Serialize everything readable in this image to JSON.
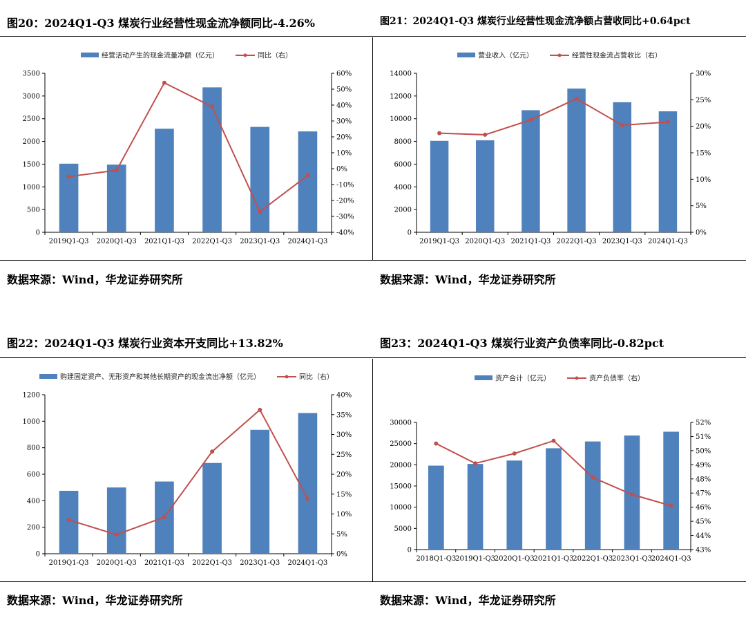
{
  "charts": [
    {
      "title": "图20：2024Q1-Q3 煤炭行业经营性现金流净额同比-4.26%",
      "source": "数据来源：Wind，华龙证券研究所",
      "chart_data": {
        "type": "bar",
        "categories": [
          "2019Q1-Q3",
          "2020Q1-Q3",
          "2021Q1-Q3",
          "2022Q1-Q3",
          "2023Q1-Q3",
          "2024Q1-Q3"
        ],
        "series": [
          {
            "name": "经营活动产生的现金流量净额（亿元）",
            "type": "bar",
            "axis": "left",
            "values": [
              1510,
              1490,
              2280,
              3190,
              2320,
              2220
            ]
          },
          {
            "name": "同比（右）",
            "type": "line",
            "axis": "right",
            "values": [
              -5,
              -1,
              54,
              39,
              -27,
              -4.26
            ]
          }
        ],
        "ylim": [
          0,
          3500
        ],
        "yticks": [
          0,
          500,
          1000,
          1500,
          2000,
          2500,
          3000,
          3500
        ],
        "y2lim": [
          -40,
          60
        ],
        "y2ticks": [
          -40,
          -30,
          -20,
          -10,
          0,
          10,
          20,
          30,
          40,
          50,
          60
        ],
        "y2tick_labels": [
          "-40%",
          "-30%",
          "-20%",
          "-10%",
          "0%",
          "10%",
          "20%",
          "30%",
          "40%",
          "50%",
          "60%"
        ],
        "legend": "top-center",
        "grid": false
      }
    },
    {
      "title": "图21：2024Q1-Q3 煤炭行业经营性现金流净额占营收同比+0.64pct",
      "source": "数据来源：Wind，华龙证券研究所",
      "chart_data": {
        "type": "bar",
        "categories": [
          "2019Q1-Q3",
          "2020Q1-Q3",
          "2021Q1-Q3",
          "2022Q1-Q3",
          "2023Q1-Q3",
          "2024Q1-Q3"
        ],
        "series": [
          {
            "name": "营业收入（亿元）",
            "type": "bar",
            "axis": "left",
            "values": [
              8050,
              8100,
              10750,
              12650,
              11450,
              10650
            ]
          },
          {
            "name": "经营性现金流占营收比（右）",
            "type": "line",
            "axis": "right",
            "values": [
              18.7,
              18.4,
              21.2,
              25.2,
              20.2,
              20.8
            ]
          }
        ],
        "ylim": [
          0,
          14000
        ],
        "yticks": [
          0,
          2000,
          4000,
          6000,
          8000,
          10000,
          12000,
          14000
        ],
        "y2lim": [
          0,
          30
        ],
        "y2ticks": [
          0,
          5,
          10,
          15,
          20,
          25,
          30
        ],
        "y2tick_labels": [
          "0%",
          "5%",
          "10%",
          "15%",
          "20%",
          "25%",
          "30%"
        ],
        "legend": "top-center",
        "grid": false
      }
    },
    {
      "title": "图22：2024Q1-Q3 煤炭行业资本开支同比+13.82%",
      "source": "数据来源：Wind，华龙证券研究所",
      "chart_data": {
        "type": "bar",
        "categories": [
          "2019Q1-Q3",
          "2020Q1-Q3",
          "2021Q1-Q3",
          "2022Q1-Q3",
          "2023Q1-Q3",
          "2024Q1-Q3"
        ],
        "series": [
          {
            "name": "购建固定资产、无形资产和其他长期资产的现金流出净额（亿元）",
            "type": "bar",
            "axis": "left",
            "values": [
              475,
              500,
              545,
              685,
              935,
              1062
            ]
          },
          {
            "name": "同比（右）",
            "type": "line",
            "axis": "right",
            "values": [
              8.5,
              4.8,
              9.2,
              25.7,
              36.2,
              13.82
            ]
          }
        ],
        "ylim": [
          0,
          1200
        ],
        "yticks": [
          0,
          200,
          400,
          600,
          800,
          1000,
          1200
        ],
        "y2lim": [
          0,
          40
        ],
        "y2ticks": [
          0,
          5,
          10,
          15,
          20,
          25,
          30,
          35,
          40
        ],
        "y2tick_labels": [
          "0%",
          "5%",
          "10%",
          "15%",
          "20%",
          "25%",
          "30%",
          "35%",
          "40%"
        ],
        "legend": "top-center",
        "grid": false
      }
    },
    {
      "title": "图23：2024Q1-Q3 煤炭行业资产负债率同比-0.82pct",
      "source": "数据来源：Wind，华龙证券研究所",
      "chart_data": {
        "type": "bar",
        "categories": [
          "2018Q1-Q3",
          "2019Q1-Q3",
          "2020Q1-Q3",
          "2021Q1-Q3",
          "2022Q1-Q3",
          "2023Q1-Q3",
          "2024Q1-Q3"
        ],
        "series": [
          {
            "name": "资产合计（亿元）",
            "type": "bar",
            "axis": "left",
            "values": [
              19800,
              20200,
              21000,
              23900,
              25500,
              26900,
              27800
            ]
          },
          {
            "name": "资产负债率（右）",
            "type": "line",
            "axis": "right",
            "values": [
              50.5,
              49.1,
              49.8,
              50.7,
              48.1,
              46.9,
              46.1
            ]
          }
        ],
        "ylim": [
          0,
          30000
        ],
        "yticks": [
          0,
          5000,
          10000,
          15000,
          20000,
          25000,
          30000
        ],
        "y2lim": [
          43,
          52
        ],
        "y2ticks": [
          43,
          44,
          45,
          46,
          47,
          48,
          49,
          50,
          51,
          52
        ],
        "y2tick_labels": [
          "43%",
          "44%",
          "45%",
          "46%",
          "47%",
          "48%",
          "49%",
          "50%",
          "51%",
          "52%"
        ],
        "legend": "top-center",
        "grid": false
      }
    }
  ],
  "colors": {
    "bar": "#4f81bd",
    "line": "#c0504d",
    "axis": "#000000"
  }
}
